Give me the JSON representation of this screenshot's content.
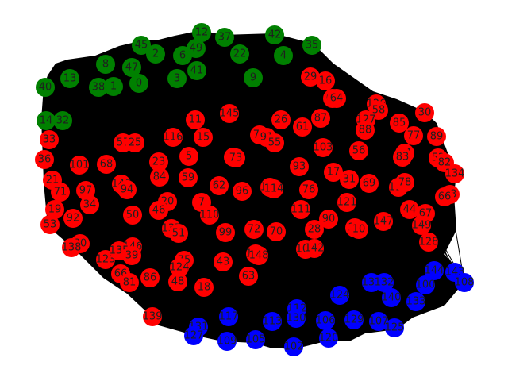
{
  "colors": {
    "green": "#008000",
    "red": "#ff0000",
    "blue": "#0000ff",
    "edge": "#000000"
  },
  "nodes": [
    {
      "label": "12",
      "group": "green"
    },
    {
      "label": "37",
      "group": "green"
    },
    {
      "label": "42",
      "group": "green"
    },
    {
      "label": "35",
      "group": "green"
    },
    {
      "label": "45",
      "group": "green"
    },
    {
      "label": "2",
      "group": "green"
    },
    {
      "label": "49",
      "group": "green"
    },
    {
      "label": "6",
      "group": "green"
    },
    {
      "label": "22",
      "group": "green"
    },
    {
      "label": "4",
      "group": "green"
    },
    {
      "label": "8",
      "group": "green"
    },
    {
      "label": "47",
      "group": "green"
    },
    {
      "label": "41",
      "group": "green"
    },
    {
      "label": "3",
      "group": "green"
    },
    {
      "label": "9",
      "group": "green"
    },
    {
      "label": "13",
      "group": "green"
    },
    {
      "label": "38",
      "group": "green"
    },
    {
      "label": "1",
      "group": "green"
    },
    {
      "label": "0",
      "group": "green"
    },
    {
      "label": "40",
      "group": "green"
    },
    {
      "label": "14",
      "group": "green"
    },
    {
      "label": "32",
      "group": "green"
    },
    {
      "label": "29",
      "group": "red"
    },
    {
      "label": "16",
      "group": "red"
    },
    {
      "label": "65",
      "group": "red"
    },
    {
      "label": "64",
      "group": "red"
    },
    {
      "label": "126",
      "group": "red"
    },
    {
      "label": "58",
      "group": "red"
    },
    {
      "label": "30",
      "group": "red"
    },
    {
      "label": "127",
      "group": "red"
    },
    {
      "label": "145",
      "group": "red"
    },
    {
      "label": "11",
      "group": "red"
    },
    {
      "label": "26",
      "group": "red"
    },
    {
      "label": "61",
      "group": "red"
    },
    {
      "label": "87",
      "group": "red"
    },
    {
      "label": "88",
      "group": "red"
    },
    {
      "label": "85",
      "group": "red"
    },
    {
      "label": "89",
      "group": "red"
    },
    {
      "label": "33",
      "group": "red"
    },
    {
      "label": "57",
      "group": "red"
    },
    {
      "label": "25",
      "group": "red"
    },
    {
      "label": "116",
      "group": "red"
    },
    {
      "label": "15",
      "group": "red"
    },
    {
      "label": "79",
      "group": "red"
    },
    {
      "label": "91",
      "group": "red"
    },
    {
      "label": "55",
      "group": "red"
    },
    {
      "label": "77",
      "group": "red"
    },
    {
      "label": "103",
      "group": "red"
    },
    {
      "label": "56",
      "group": "red"
    },
    {
      "label": "74",
      "group": "red"
    },
    {
      "label": "83",
      "group": "red"
    },
    {
      "label": "52",
      "group": "red"
    },
    {
      "label": "82",
      "group": "red"
    },
    {
      "label": "36",
      "group": "red"
    },
    {
      "label": "101",
      "group": "red"
    },
    {
      "label": "68",
      "group": "red"
    },
    {
      "label": "23",
      "group": "red"
    },
    {
      "label": "5",
      "group": "red"
    },
    {
      "label": "98",
      "group": "red"
    },
    {
      "label": "73",
      "group": "red"
    },
    {
      "label": "93",
      "group": "red"
    },
    {
      "label": "134",
      "group": "red"
    },
    {
      "label": "84",
      "group": "red"
    },
    {
      "label": "59",
      "group": "red"
    },
    {
      "label": "17",
      "group": "red"
    },
    {
      "label": "31",
      "group": "red"
    },
    {
      "label": "69",
      "group": "red"
    },
    {
      "label": "115",
      "group": "red"
    },
    {
      "label": "78",
      "group": "red"
    },
    {
      "label": "21",
      "group": "red"
    },
    {
      "label": "71",
      "group": "red"
    },
    {
      "label": "97",
      "group": "red"
    },
    {
      "label": "140",
      "group": "red"
    },
    {
      "label": "94",
      "group": "red"
    },
    {
      "label": "62",
      "group": "red"
    },
    {
      "label": "96",
      "group": "red"
    },
    {
      "label": "119",
      "group": "red"
    },
    {
      "label": "114",
      "group": "red"
    },
    {
      "label": "76",
      "group": "red"
    },
    {
      "label": "58",
      "group": "red"
    },
    {
      "label": "66",
      "group": "red"
    },
    {
      "label": "20",
      "group": "red"
    },
    {
      "label": "7",
      "group": "red"
    },
    {
      "label": "121",
      "group": "red"
    },
    {
      "label": "34",
      "group": "red"
    },
    {
      "label": "19",
      "group": "red"
    },
    {
      "label": "46",
      "group": "red"
    },
    {
      "label": "110",
      "group": "red"
    },
    {
      "label": "111",
      "group": "red"
    },
    {
      "label": "44",
      "group": "red"
    },
    {
      "label": "67",
      "group": "red"
    },
    {
      "label": "92",
      "group": "red"
    },
    {
      "label": "50",
      "group": "red"
    },
    {
      "label": "90",
      "group": "red"
    },
    {
      "label": "53",
      "group": "red"
    },
    {
      "label": "27",
      "group": "red"
    },
    {
      "label": "10",
      "group": "red"
    },
    {
      "label": "147",
      "group": "red"
    },
    {
      "label": "149",
      "group": "red"
    },
    {
      "label": "137",
      "group": "red"
    },
    {
      "label": "51",
      "group": "red"
    },
    {
      "label": "99",
      "group": "red"
    },
    {
      "label": "72",
      "group": "red"
    },
    {
      "label": "70",
      "group": "red"
    },
    {
      "label": "28",
      "group": "red"
    },
    {
      "label": "118",
      "group": "red"
    },
    {
      "label": "80",
      "group": "red"
    },
    {
      "label": "146",
      "group": "red"
    },
    {
      "label": "148",
      "group": "red"
    },
    {
      "label": "104",
      "group": "red"
    },
    {
      "label": "142",
      "group": "red"
    },
    {
      "label": "128",
      "group": "red"
    },
    {
      "label": "123",
      "group": "red"
    },
    {
      "label": "135",
      "group": "red"
    },
    {
      "label": "39",
      "group": "red"
    },
    {
      "label": "75",
      "group": "red"
    },
    {
      "label": "124",
      "group": "red"
    },
    {
      "label": "43",
      "group": "red"
    },
    {
      "label": "138",
      "group": "red"
    },
    {
      "label": "66",
      "group": "red"
    },
    {
      "label": "63",
      "group": "red"
    },
    {
      "label": "81",
      "group": "red"
    },
    {
      "label": "86",
      "group": "red"
    },
    {
      "label": "48",
      "group": "red"
    },
    {
      "label": "18",
      "group": "red"
    },
    {
      "label": "139",
      "group": "red"
    },
    {
      "label": "144",
      "group": "blue"
    },
    {
      "label": "143",
      "group": "blue"
    },
    {
      "label": "136",
      "group": "blue"
    },
    {
      "label": "132",
      "group": "blue"
    },
    {
      "label": "100",
      "group": "blue"
    },
    {
      "label": "108",
      "group": "blue"
    },
    {
      "label": "124",
      "group": "blue"
    },
    {
      "label": "140",
      "group": "blue"
    },
    {
      "label": "133",
      "group": "blue"
    },
    {
      "label": "112",
      "group": "blue"
    },
    {
      "label": "117",
      "group": "blue"
    },
    {
      "label": "131",
      "group": "blue"
    },
    {
      "label": "113",
      "group": "blue"
    },
    {
      "label": "130",
      "group": "blue"
    },
    {
      "label": "106",
      "group": "blue"
    },
    {
      "label": "129",
      "group": "blue"
    },
    {
      "label": "107",
      "group": "blue"
    },
    {
      "label": "125",
      "group": "blue"
    },
    {
      "label": "127",
      "group": "blue"
    },
    {
      "label": "109",
      "group": "blue"
    },
    {
      "label": "105",
      "group": "blue"
    },
    {
      "label": "102",
      "group": "blue"
    },
    {
      "label": "120",
      "group": "blue"
    }
  ]
}
